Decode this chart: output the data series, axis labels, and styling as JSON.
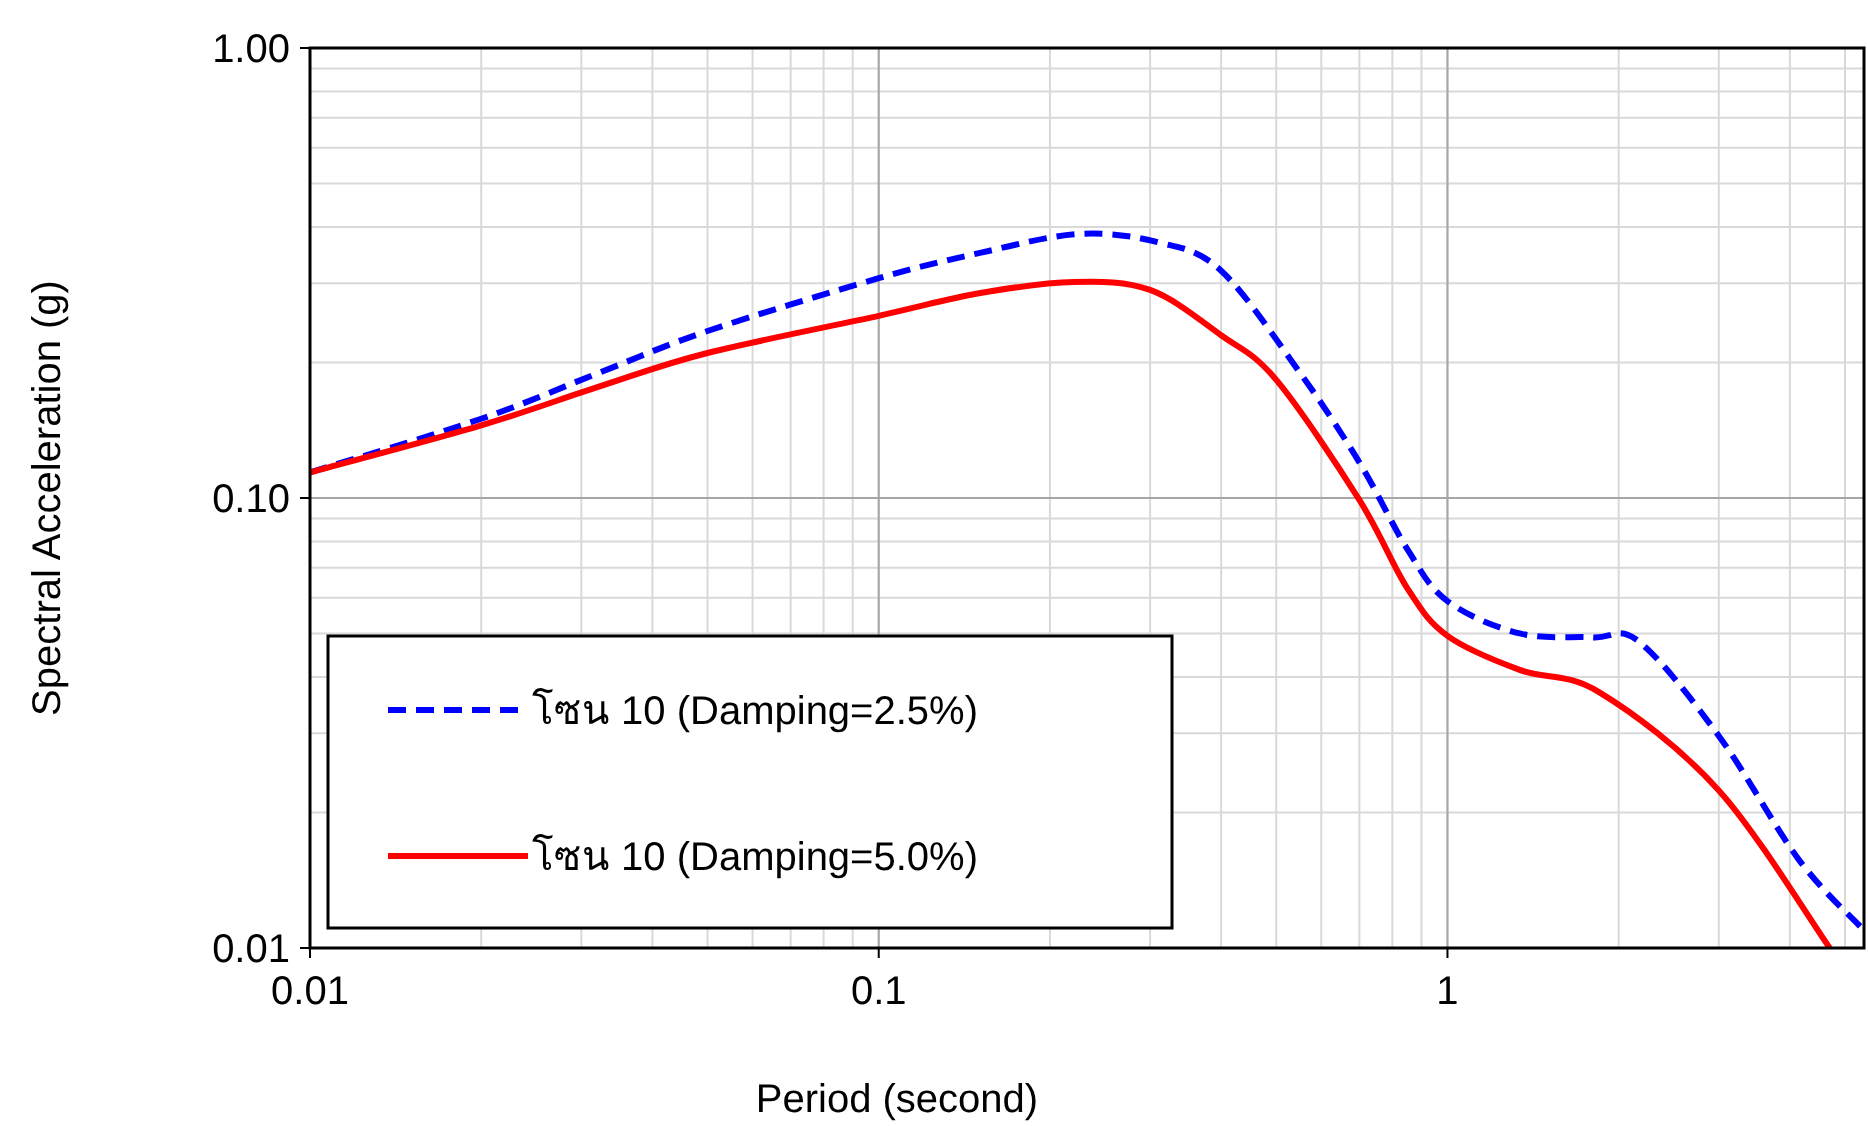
{
  "chart_data": {
    "type": "line",
    "xlabel": "Period (second)",
    "ylabel": "Spectral Acceleration (g)",
    "log": "xy",
    "grid": true,
    "legend": "bottom left",
    "xlim": [
      0.01,
      5.4
    ],
    "ylim": [
      0.01,
      1
    ],
    "xticks": [
      0.01,
      0.1,
      1
    ],
    "yticks": [
      {
        "value": 0.01,
        "label": "0.01"
      },
      {
        "value": 0.1,
        "label": "0.10"
      },
      {
        "value": 1,
        "label": "1.00"
      }
    ],
    "series": [
      {
        "name": "โซน 10 (Damping=2.5%)",
        "color": "#0000ff",
        "line_style": "dashed",
        "x": [
          0.01,
          0.02,
          0.0323,
          0.05,
          0.1,
          0.15,
          0.224,
          0.31,
          0.4,
          0.55,
          0.7,
          0.85,
          1.0,
          1.34,
          1.8,
          2.17,
          3.0,
          4.15,
          5.38
        ],
        "values": [
          0.114,
          0.15,
          0.19,
          0.235,
          0.308,
          0.35,
          0.386,
          0.37,
          0.32,
          0.19,
          0.12,
          0.077,
          0.059,
          0.05,
          0.049,
          0.048,
          0.0296,
          0.0157,
          0.011
        ]
      },
      {
        "name": "โซน 10 (Damping=5.0%)",
        "color": "#ff0000",
        "line_style": "solid",
        "x": [
          0.01,
          0.02,
          0.0323,
          0.05,
          0.1,
          0.15,
          0.22,
          0.3,
          0.4,
          0.5,
          0.7,
          0.85,
          1.0,
          1.34,
          1.85,
          3.0,
          4.7
        ],
        "values": [
          0.114,
          0.145,
          0.177,
          0.21,
          0.254,
          0.285,
          0.302,
          0.29,
          0.23,
          0.183,
          0.099,
          0.063,
          0.0494,
          0.0415,
          0.037,
          0.0224,
          0.01
        ]
      }
    ]
  }
}
